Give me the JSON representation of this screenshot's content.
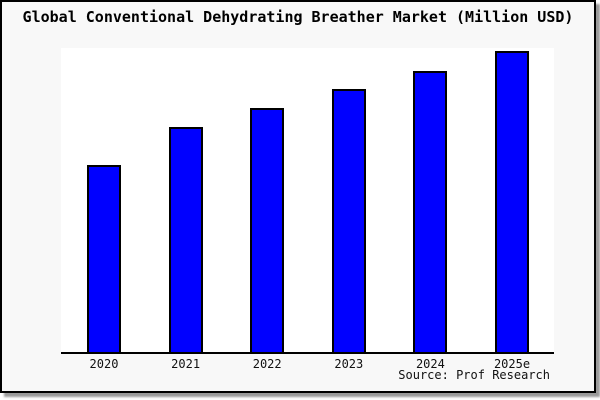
{
  "header": {
    "title": "Global Conventional Dehydrating Breather Market (Million USD)"
  },
  "footer": {
    "source_label": "Source: Prof Research"
  },
  "chart_data": {
    "type": "bar",
    "title": "Global Conventional Dehydrating Breather Market (Million USD)",
    "categories": [
      "2020",
      "2021",
      "2022",
      "2023",
      "2024",
      "2025e"
    ],
    "values": [
      62.4,
      74.9,
      81.2,
      87.5,
      93.4,
      100
    ],
    "value_scale": "relative bar heights, normalized to 2025e = 100 (y-axis has no ticks or labels in source)",
    "xlabel": "",
    "ylabel": "",
    "ylim": [
      0,
      100
    ],
    "gridlines": false,
    "legend": false,
    "y_axis_visible": false,
    "bar_color": "#0000ff",
    "bar_border_color": "#000000",
    "axis_color": "#000000",
    "plot_background": "#ffffff",
    "outer_background": "#f8f8f8",
    "source": "Source: Prof Research"
  }
}
